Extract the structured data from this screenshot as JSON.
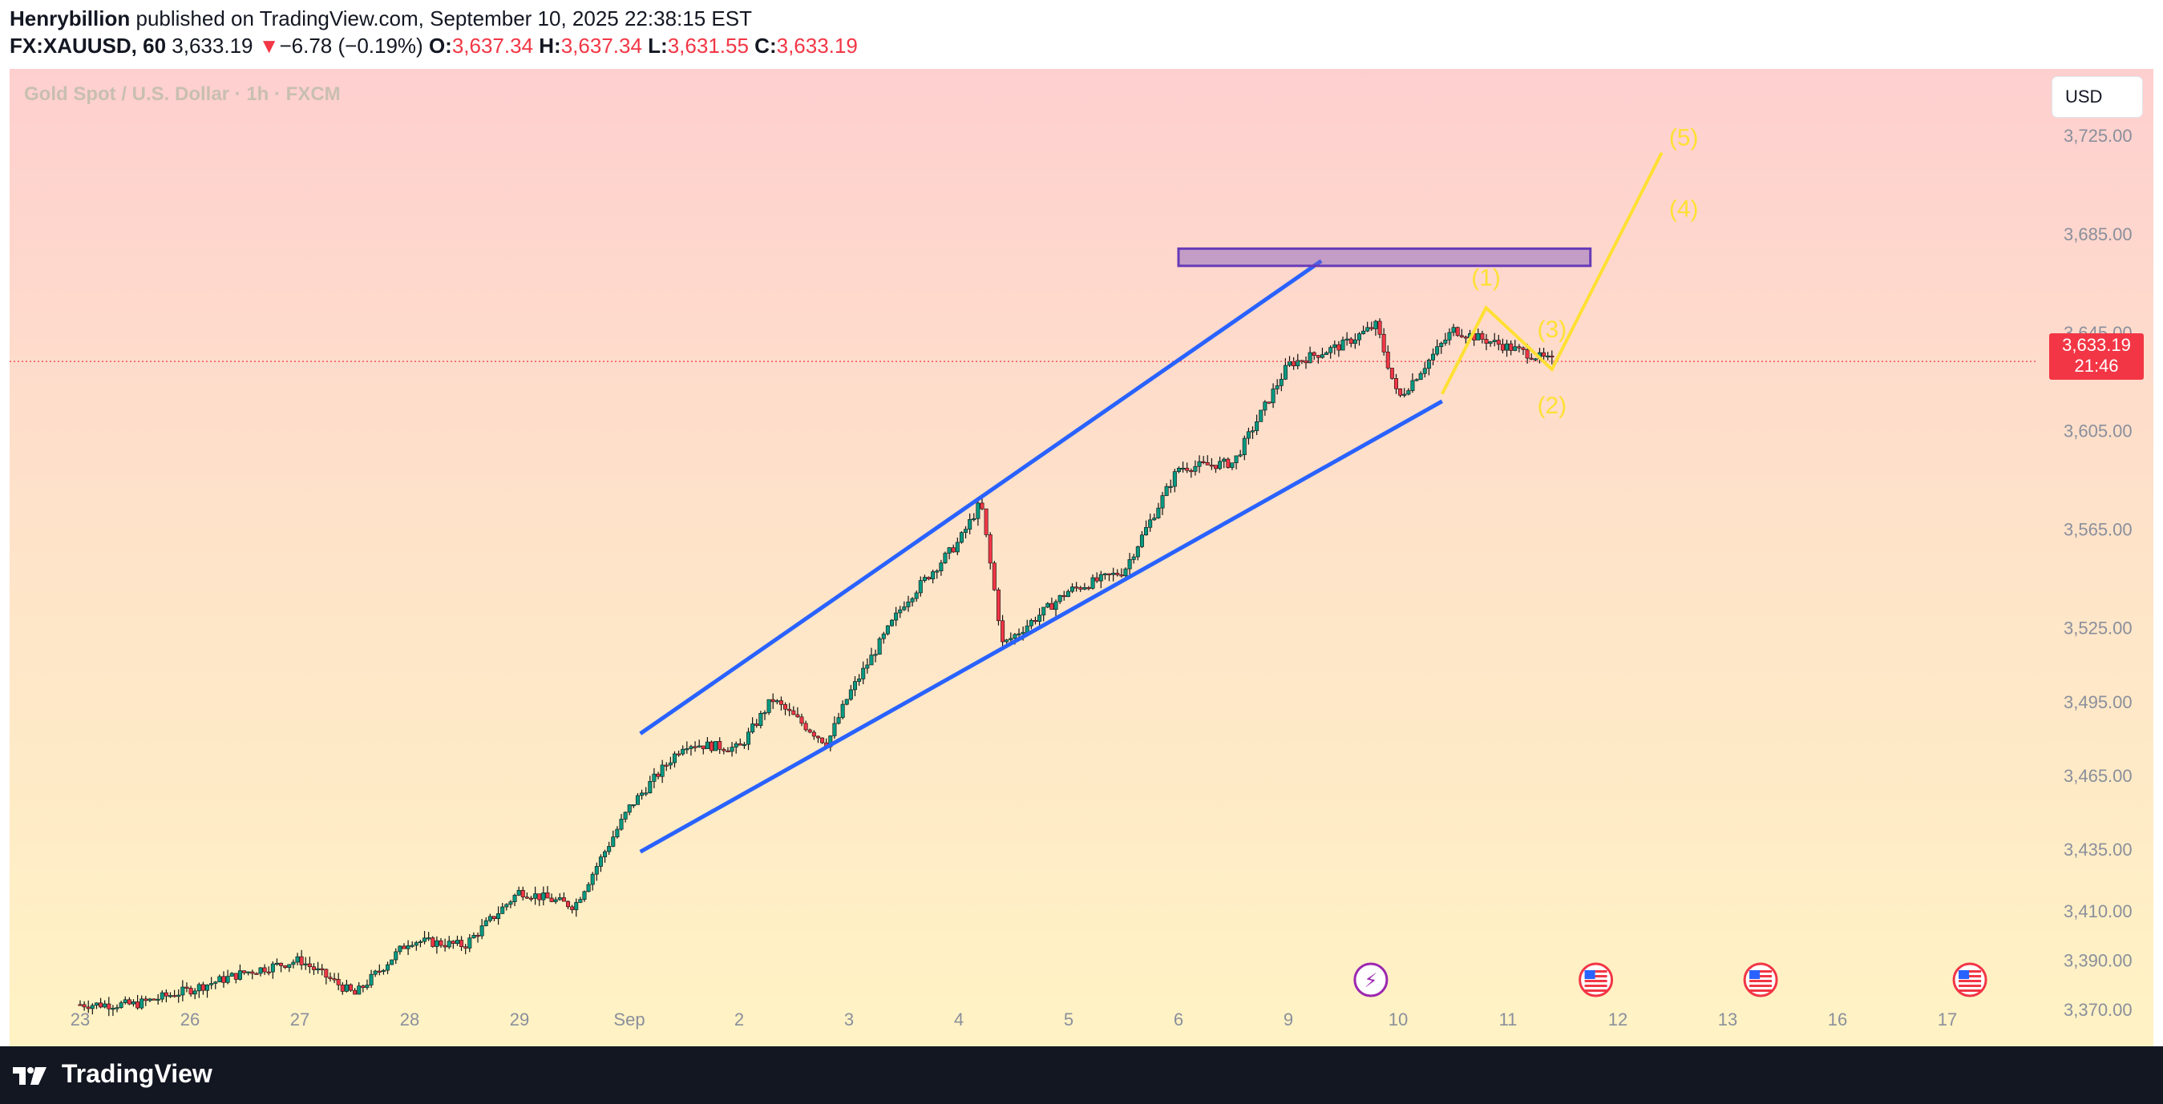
{
  "header": {
    "author": "Henrybillion",
    "published_text": "published on TradingView.com, September 10, 2025 22:38:15 EST",
    "symbol": "FX:XAUUSD, 60",
    "last_price": "3,633.19",
    "change_arrow": "▼",
    "change": "−6.78 (−0.19%)",
    "open_label": "O:",
    "open": "3,637.34",
    "high_label": "H:",
    "high": "3,637.34",
    "low_label": "L:",
    "low": "3,631.55",
    "close_label": "C:",
    "close": "3,633.19"
  },
  "chart": {
    "watermark": "Gold Spot / U.S. Dollar · 1h · FXCM",
    "currency_button": "USD",
    "price_label": "3,633.19",
    "countdown_label": "21:46",
    "up_color": "#089981",
    "down_color": "#f23645",
    "trendline_color": "#2962ff",
    "wave_color": "#ffe033",
    "zone_color": "#7e57c2"
  },
  "chart_data": {
    "type": "candlestick",
    "title": "Gold Spot / U.S. Dollar · 1h · FXCM",
    "y_ticks": [
      "3,725.00",
      "3,685.00",
      "3,645.00",
      "3,605.00",
      "3,565.00",
      "3,525.00",
      "3,495.00",
      "3,465.00",
      "3,435.00",
      "3,410.00",
      "3,390.00",
      "3,370.00"
    ],
    "x_ticks": [
      "23",
      "26",
      "27",
      "28",
      "29",
      "Sep",
      "2",
      "3",
      "4",
      "5",
      "6",
      "9",
      "10",
      "11",
      "12",
      "13",
      "16",
      "17"
    ],
    "ylim": [
      3355,
      3752
    ],
    "current_price": 3633.19,
    "price_path": [
      {
        "session": "23",
        "price": 3372
      },
      {
        "session": "23.5",
        "price": 3372
      },
      {
        "session": "26",
        "price": 3378
      },
      {
        "session": "26.5",
        "price": 3385
      },
      {
        "session": "27",
        "price": 3390
      },
      {
        "session": "27.5",
        "price": 3376
      },
      {
        "session": "28",
        "price": 3398
      },
      {
        "session": "28.5",
        "price": 3396
      },
      {
        "session": "29",
        "price": 3418
      },
      {
        "session": "29.5",
        "price": 3412
      },
      {
        "session": "Sep",
        "price": 3452
      },
      {
        "session": "Sep.5",
        "price": 3478
      },
      {
        "session": "2",
        "price": 3476
      },
      {
        "session": "2.3",
        "price": 3496
      },
      {
        "session": "2.8",
        "price": 3478
      },
      {
        "session": "3",
        "price": 3498
      },
      {
        "session": "3.5",
        "price": 3535
      },
      {
        "session": "4",
        "price": 3560
      },
      {
        "session": "4.2",
        "price": 3576
      },
      {
        "session": "4.4",
        "price": 3518
      },
      {
        "session": "5",
        "price": 3540
      },
      {
        "session": "5.5",
        "price": 3548
      },
      {
        "session": "6",
        "price": 3590
      },
      {
        "session": "6.5",
        "price": 3592
      },
      {
        "session": "9",
        "price": 3632
      },
      {
        "session": "9.5",
        "price": 3640
      },
      {
        "session": "9.8",
        "price": 3648
      },
      {
        "session": "10",
        "price": 3618
      },
      {
        "session": "10.5",
        "price": 3646
      },
      {
        "session": "11",
        "price": 3639
      },
      {
        "session": "11.4",
        "price": 3633.19
      }
    ],
    "annotations": [
      {
        "type": "rising-wedge",
        "upper_line": [
          3482,
          3674
        ],
        "lower_line": [
          3434,
          3617
        ]
      },
      {
        "type": "resistance-zone",
        "range": [
          3672,
          3679
        ]
      },
      {
        "type": "elliott-wave",
        "labels": [
          "(1)",
          "(2)",
          "(3)",
          "(4)",
          "(5)"
        ],
        "prices": [
          3652,
          3622,
          3634,
          3693,
          3716
        ]
      }
    ]
  }
}
